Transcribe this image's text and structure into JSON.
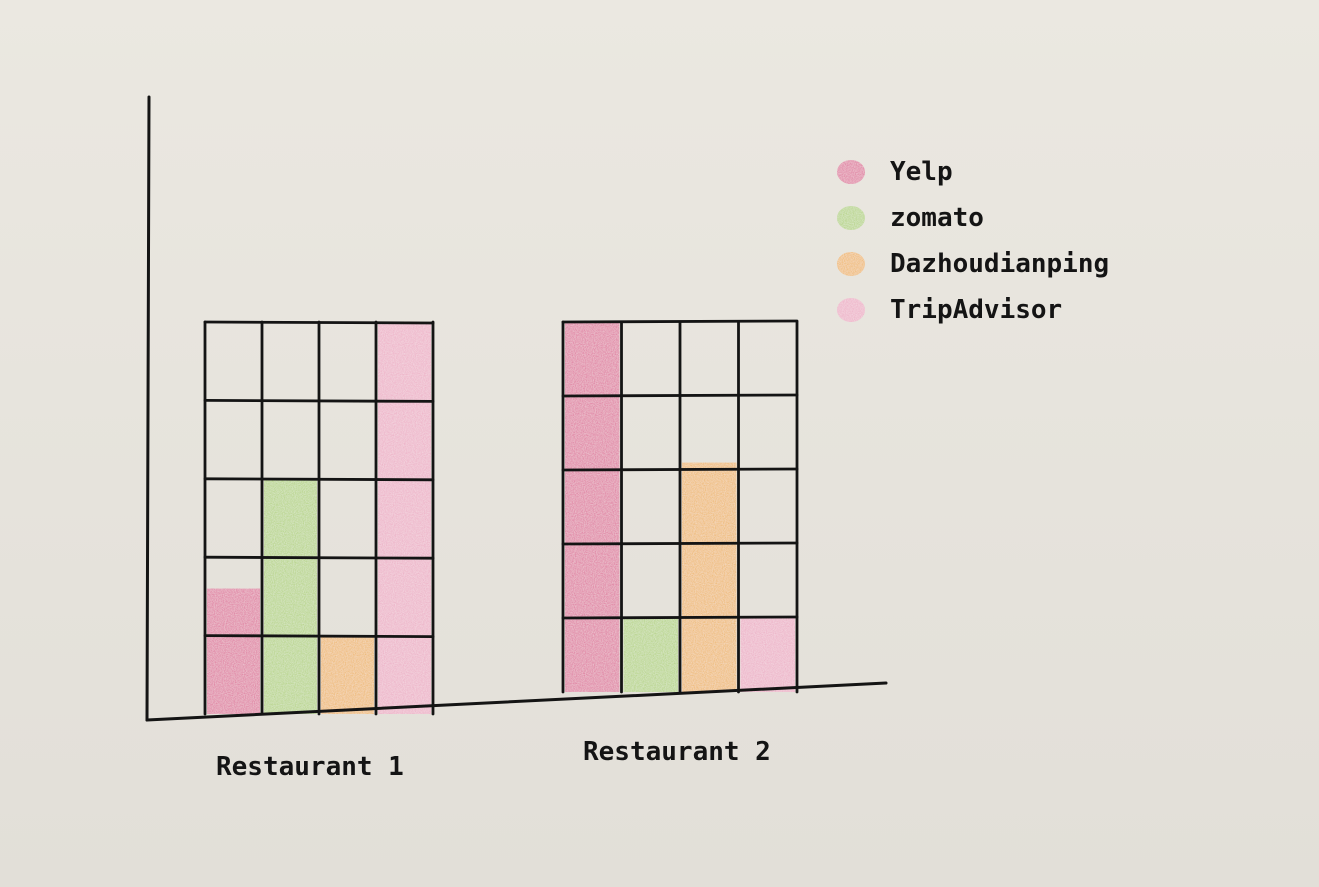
{
  "chart_data": {
    "type": "bar",
    "title": "",
    "xlabel": "",
    "ylabel": "",
    "ylim": [
      0,
      5
    ],
    "grid": true,
    "legend_position": "top-right",
    "categories": [
      "Restaurant 1",
      "Restaurant 2"
    ],
    "series": [
      {
        "name": "Yelp",
        "color": "#dc5a8e",
        "values": [
          1.6,
          5.0
        ]
      },
      {
        "name": "zomato",
        "color": "#a9cf6a",
        "values": [
          3.0,
          1.0
        ]
      },
      {
        "name": "Dazhoudianping",
        "color": "#efad44",
        "values": [
          1.0,
          3.1
        ]
      },
      {
        "name": "TripAdvisor",
        "color": "#eda2bf",
        "values": [
          5.0,
          1.0
        ]
      }
    ]
  }
}
